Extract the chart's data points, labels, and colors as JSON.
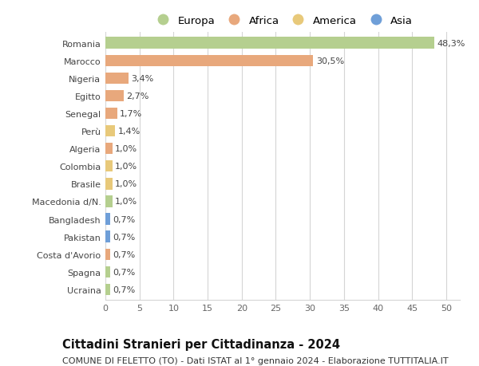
{
  "title": "Cittadini Stranieri per Cittadinanza - 2024",
  "subtitle": "COMUNE DI FELETTO (TO) - Dati ISTAT al 1° gennaio 2024 - Elaborazione TUTTITALIA.IT",
  "categories": [
    "Ucraina",
    "Spagna",
    "Costa d'Avorio",
    "Pakistan",
    "Bangladesh",
    "Macedonia d/N.",
    "Brasile",
    "Colombia",
    "Algeria",
    "Perù",
    "Senegal",
    "Egitto",
    "Nigeria",
    "Marocco",
    "Romania"
  ],
  "values": [
    0.7,
    0.7,
    0.7,
    0.7,
    0.7,
    1.0,
    1.0,
    1.0,
    1.0,
    1.4,
    1.7,
    2.7,
    3.4,
    30.5,
    48.3
  ],
  "labels": [
    "0,7%",
    "0,7%",
    "0,7%",
    "0,7%",
    "0,7%",
    "1,0%",
    "1,0%",
    "1,0%",
    "1,0%",
    "1,4%",
    "1,7%",
    "2,7%",
    "3,4%",
    "30,5%",
    "48,3%"
  ],
  "colors": [
    "#b5cf8f",
    "#b5cf8f",
    "#e8a87c",
    "#6f9fd8",
    "#6f9fd8",
    "#b5cf8f",
    "#e8c97a",
    "#e8c97a",
    "#e8a87c",
    "#e8c97a",
    "#e8a87c",
    "#e8a87c",
    "#e8a87c",
    "#e8a87c",
    "#b5cf8f"
  ],
  "legend_colors": {
    "Europa": "#b5cf8f",
    "Africa": "#e8a87c",
    "America": "#e8c97a",
    "Asia": "#6f9fd8"
  },
  "xlim": [
    0,
    52
  ],
  "xticks": [
    0,
    5,
    10,
    15,
    20,
    25,
    30,
    35,
    40,
    45,
    50
  ],
  "background_color": "#ffffff",
  "grid_color": "#d5d5d5",
  "bar_height": 0.65,
  "title_fontsize": 10.5,
  "subtitle_fontsize": 8,
  "label_fontsize": 8,
  "tick_fontsize": 8,
  "legend_fontsize": 9.5
}
